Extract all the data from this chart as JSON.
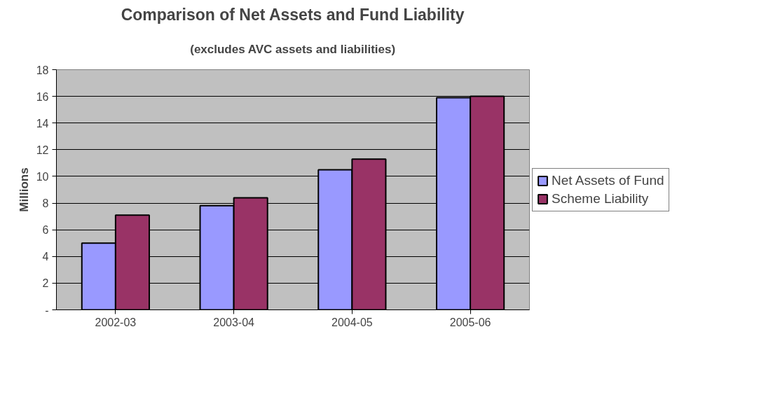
{
  "chart_data": {
    "type": "bar",
    "title": "Comparison of Net Assets and Fund Liability",
    "subtitle": "(excludes AVC assets and liabilities)",
    "ylabel": "Millions",
    "categories": [
      "2002-03",
      "2003-04",
      "2004-05",
      "2005-06"
    ],
    "series": [
      {
        "name": "Net Assets of Fund",
        "color": "#9999ff",
        "values": [
          5.0,
          7.8,
          10.5,
          15.9
        ]
      },
      {
        "name": "Scheme Liability",
        "color": "#993366",
        "values": [
          7.1,
          8.4,
          11.3,
          16.0
        ]
      }
    ],
    "ylim": [
      0,
      18
    ],
    "yticks": [
      {
        "value": 0,
        "label": "-"
      },
      2,
      4,
      6,
      8,
      10,
      12,
      14,
      16,
      18
    ],
    "grid": "y",
    "legend": "right"
  }
}
